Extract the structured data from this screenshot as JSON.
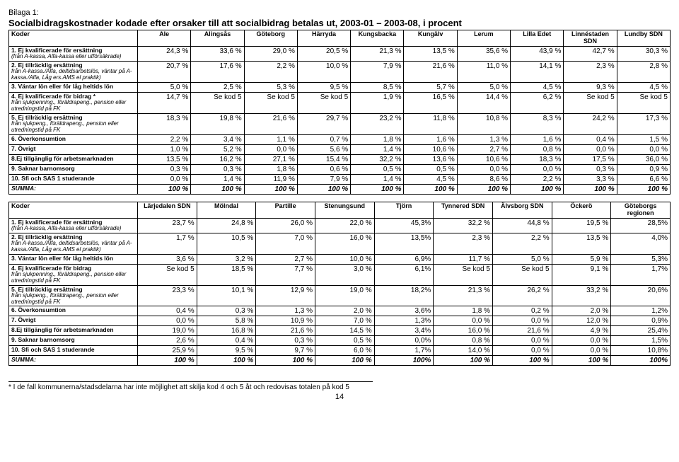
{
  "appendix": "Bilaga 1:",
  "title": "Socialbidragskostnader kodade efter orsaker till att socialbidrag betalas ut, 2003-01 – 2003-08, i procent",
  "footnote": "* I de fall kommunerna/stadsdelarna har inte möjlighet att skilja kod 4 och 5 åt och redovisas totalen på kod 5",
  "pageNumber": "14",
  "table1": {
    "headers": [
      "Koder",
      "Ale",
      "Alingsås",
      "Göteborg",
      "Härryda",
      "Kungsbacka",
      "Kungälv",
      "Lerum",
      "Lilla Edet",
      "Linnéstaden SDN",
      "Lundby SDN"
    ],
    "rows": [
      {
        "label": "1. Ej kvalificerade för ersättning",
        "sub": "(från A-kassa, Alfa-kassa eller utförsäkrade)",
        "vals": [
          "24,3 %",
          "33,6 %",
          "29,0 %",
          "20,5 %",
          "21,3 %",
          "13,5 %",
          "35,6 %",
          "43,9 %",
          "42,7 %",
          "30,3 %"
        ]
      },
      {
        "label": "2. Ej tillräcklig ersättning",
        "sub": "från A-kassa./Alfa, deltidsarbetslös, väntar på A-kassa./Alfa, Låg ers.AMS el praktik)",
        "vals": [
          "20,7 %",
          "17,6 %",
          "2,2 %",
          "10,0 %",
          "7,9 %",
          "21,6 %",
          "11,0 %",
          "14,1 %",
          "2,3 %",
          "2,8 %"
        ]
      },
      {
        "label": "3. Väntar lön eller för låg heltids lön",
        "sub": "",
        "vals": [
          "5,0 %",
          "2,5 %",
          "5,3 %",
          "9,5 %",
          "8,5 %",
          "5,7 %",
          "5,0 %",
          "4,5 %",
          "9,3 %",
          "4,5 %"
        ]
      },
      {
        "label": "4. Ej kvalificerade för bidrag *",
        "sub": "från sjukpenning., föräldrapeng., pension eller utredningstid på FK",
        "vals": [
          "14,7 %",
          "Se kod 5",
          "Se kod 5",
          "Se kod 5",
          "1,9 %",
          "16,5 %",
          "14,4 %",
          "6,2 %",
          "Se kod 5",
          "Se kod 5"
        ]
      },
      {
        "label": "5. Ej tillräcklig ersättning",
        "sub": "från sjukpeng., föräldrapeng., pension eller utredningstid på FK",
        "vals": [
          "18,3 %",
          "19,8 %",
          "21,6 %",
          "29,7 %",
          "23,2 %",
          "11,8 %",
          "10,8 %",
          "8,3 %",
          "24,2 %",
          "17,3 %"
        ]
      },
      {
        "label": "6. Överkonsumtion",
        "sub": "",
        "vals": [
          "2,2 %",
          "3,4 %",
          "1,1 %",
          "0,7 %",
          "1,8 %",
          "1,6 %",
          "1,3 %",
          "1,6 %",
          "0,4 %",
          "1,5 %"
        ]
      },
      {
        "label": "7. Övrigt",
        "sub": "",
        "vals": [
          "1,0 %",
          "5,2 %",
          "0,0 %",
          "5,6 %",
          "1,4 %",
          "10,6 %",
          "2,7 %",
          "0,8 %",
          "0,0 %",
          "0,0 %"
        ]
      },
      {
        "label": "8.Ej tillgänglig för arbetsmarknaden",
        "sub": "",
        "vals": [
          "13,5 %",
          "16,2 %",
          "27,1 %",
          "15,4 %",
          "32,2 %",
          "13,6 %",
          "10,6 %",
          "18,3 %",
          "17,5 %",
          "36,0 %"
        ]
      },
      {
        "label": "9. Saknar barnomsorg",
        "sub": "",
        "vals": [
          "0,3 %",
          "0,3 %",
          "1,8 %",
          "0,6 %",
          "0,5 %",
          "0,5 %",
          "0,0 %",
          "0,0 %",
          "0,3 %",
          "0,9 %"
        ]
      },
      {
        "label": "10. Sfi och SAS 1 studerande",
        "sub": "",
        "vals": [
          "0,0 %",
          "1,4 %",
          "11,9 %",
          "7,9 %",
          "1,4 %",
          "4,5 %",
          "8,6 %",
          "2,2 %",
          "3,3 %",
          "6,6 %"
        ]
      },
      {
        "label": "SUMMA:",
        "sub": "",
        "summa": true,
        "vals": [
          "100 %",
          "100 %",
          "100 %",
          "100 %",
          "100 %",
          "100 %",
          "100 %",
          "100 %",
          "100 %",
          "100 %"
        ]
      }
    ]
  },
  "table2": {
    "headers": [
      "Koder",
      "Lärjedalen SDN",
      "Mölndal",
      "Partille",
      "Stenungsund",
      "Tjörn",
      "Tynnered SDN",
      "Älvsborg SDN",
      "Öckerö",
      "Göteborgs regionen"
    ],
    "rows": [
      {
        "label": "1. Ej kvalificerade för ersättning",
        "sub": "(från A-kassa, Alfa-kassa eller utförsäkrade)",
        "vals": [
          "23,7 %",
          "24,8 %",
          "26,0 %",
          "22,0 %",
          "45,3%",
          "32,2 %",
          "44,8 %",
          "19,5 %",
          "28,5%"
        ]
      },
      {
        "label": "2. Ej tillräcklig ersättning",
        "sub": "från A-kassa./Alfa, deltidsarbetslös, väntar på A-kassa./Alfa, Låg ers.AMS el praktik)",
        "vals": [
          "1,7 %",
          "10,5 %",
          "7,0 %",
          "16,0 %",
          "13,5%",
          "2,3 %",
          "2,2 %",
          "13,5 %",
          "4,0%"
        ]
      },
      {
        "label": "3. Väntar lön eller för låg heltids lön",
        "sub": "",
        "vals": [
          "3,6 %",
          "3,2 %",
          "2,7 %",
          "10,0 %",
          "6,9%",
          "11,7 %",
          "5,0 %",
          "5,9 %",
          "5,3%"
        ]
      },
      {
        "label": "4. Ej kvalificerade för bidrag",
        "sub": "från sjukpenning., föräldrapeng., pension eller utredningstid på FK",
        "vals": [
          "Se kod 5",
          "18,5 %",
          "7,7 %",
          "3,0 %",
          "6,1%",
          "Se kod 5",
          "Se kod 5",
          "9,1 %",
          "1,7%"
        ]
      },
      {
        "label": "5. Ej tillräcklig ersättning",
        "sub": "från sjukpeng., föräldrapeng., pension eller utredningstid på FK",
        "vals": [
          "23,3 %",
          "10,1 %",
          "12,9 %",
          "19,0 %",
          "18,2%",
          "21,3 %",
          "26,2 %",
          "33,2 %",
          "20,6%"
        ]
      },
      {
        "label": "6. Överkonsumtion",
        "sub": "",
        "vals": [
          "0,4 %",
          "0,3 %",
          "1,3 %",
          "2,0 %",
          "3,6%",
          "1,8 %",
          "0,2 %",
          "2,0 %",
          "1,2%"
        ]
      },
      {
        "label": "7. Övrigt",
        "sub": "",
        "vals": [
          "0,0 %",
          "5,8 %",
          "10,9 %",
          "7,0 %",
          "1,3%",
          "0,0 %",
          "0,0 %",
          "12,0 %",
          "0,9%"
        ]
      },
      {
        "label": "8.Ej tillgänglig för arbetsmarknaden",
        "sub": "",
        "vals": [
          "19,0 %",
          "16,8 %",
          "21,6 %",
          "14,5 %",
          "3,4%",
          "16,0 %",
          "21,6 %",
          "4,9 %",
          "25,4%"
        ]
      },
      {
        "label": "9. Saknar barnomsorg",
        "sub": "",
        "vals": [
          "2,6 %",
          "0,4 %",
          "0,3 %",
          "0,5 %",
          "0,0%",
          "0,8 %",
          "0,0 %",
          "0,0 %",
          "1,5%"
        ]
      },
      {
        "label": "10. Sfi och SAS 1 studerande",
        "sub": "",
        "vals": [
          "25,9 %",
          "9,5 %",
          "9,7 %",
          "6,0 %",
          "1,7%",
          "14,0 %",
          "0,0 %",
          "0,0 %",
          "10,8%"
        ]
      },
      {
        "label": "SUMMA:",
        "sub": "",
        "summa": true,
        "vals": [
          "100 %",
          "100 %",
          "100 %",
          "100 %",
          "100%",
          "100 %",
          "100 %",
          "100 %",
          "100%"
        ]
      }
    ]
  }
}
